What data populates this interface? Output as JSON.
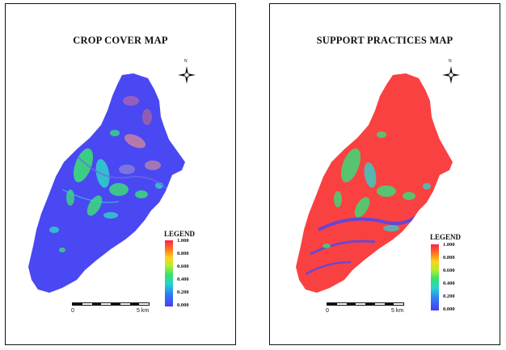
{
  "maps": [
    {
      "id": "crop-cover",
      "title": "CROP COVER MAP",
      "base_color": "#4a48f2",
      "accent_colors": [
        "#38d97a",
        "#2fd3c9",
        "#ff4d4d"
      ],
      "legend": {
        "title": "LEGEND",
        "ticks": [
          "1.000",
          "0.800",
          "0.600",
          "0.400",
          "0.200",
          "0.000"
        ]
      },
      "scale": {
        "start": "0",
        "end": "5 km"
      },
      "north_label": "N"
    },
    {
      "id": "support-practices",
      "title": "SUPPORT PRACTICES MAP",
      "base_color": "#fa4141",
      "accent_colors": [
        "#38d97a",
        "#2fd3c9",
        "#4a48f2"
      ],
      "legend": {
        "title": "LEGEND",
        "ticks": [
          "1.000",
          "0.800",
          "0.600",
          "0.400",
          "0.200",
          "0.000"
        ]
      },
      "scale": {
        "start": "0",
        "end": "5 km"
      },
      "north_label": "N"
    }
  ],
  "legend_colors": [
    "#4b3cf0",
    "#2f7cf5",
    "#26d3d0",
    "#37e36a",
    "#b7ee2a",
    "#ffd21f",
    "#ff7a1f",
    "#ff1f4e"
  ]
}
